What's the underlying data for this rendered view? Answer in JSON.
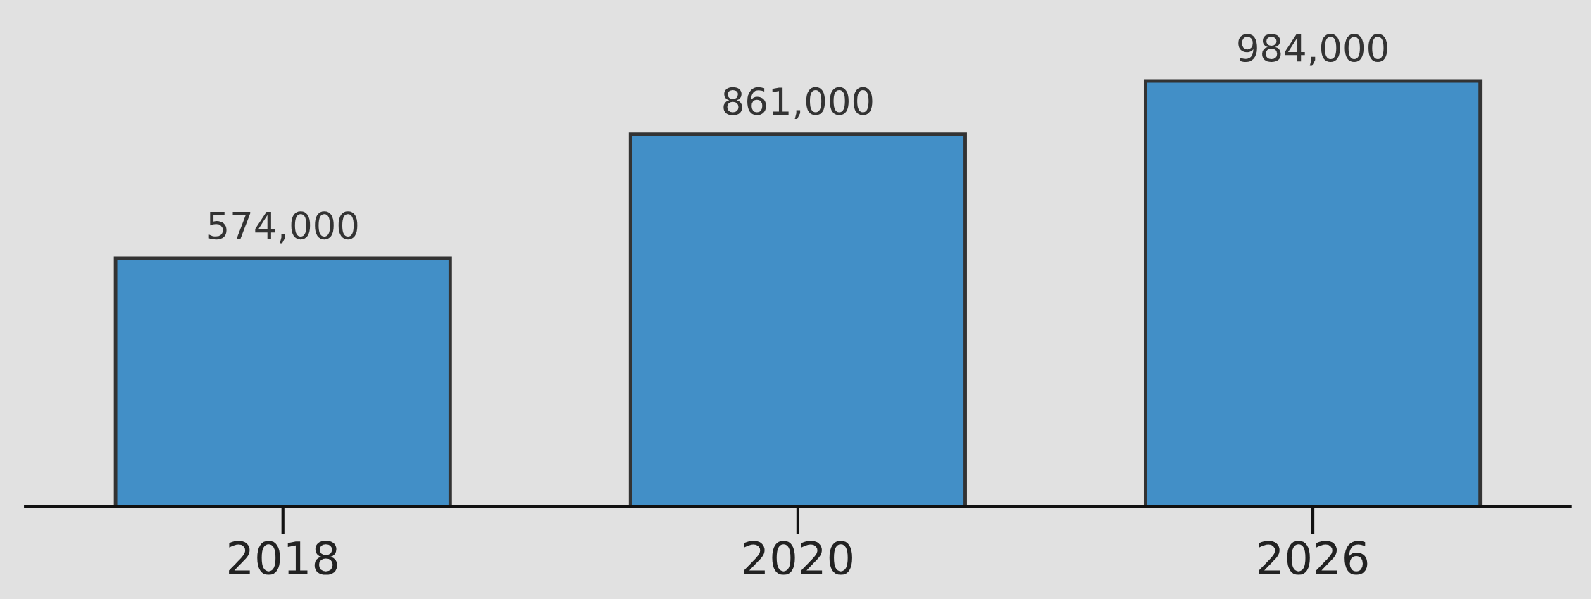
{
  "chart_data": {
    "type": "bar",
    "categories": [
      "2018",
      "2020",
      "2026"
    ],
    "values": [
      574000,
      861000,
      984000
    ],
    "value_labels": [
      "574,000",
      "861,000",
      "984,000"
    ],
    "color": "#428fc7",
    "ylim": [
      0,
      1171000
    ],
    "tick_labels": "x",
    "legend": false
  }
}
